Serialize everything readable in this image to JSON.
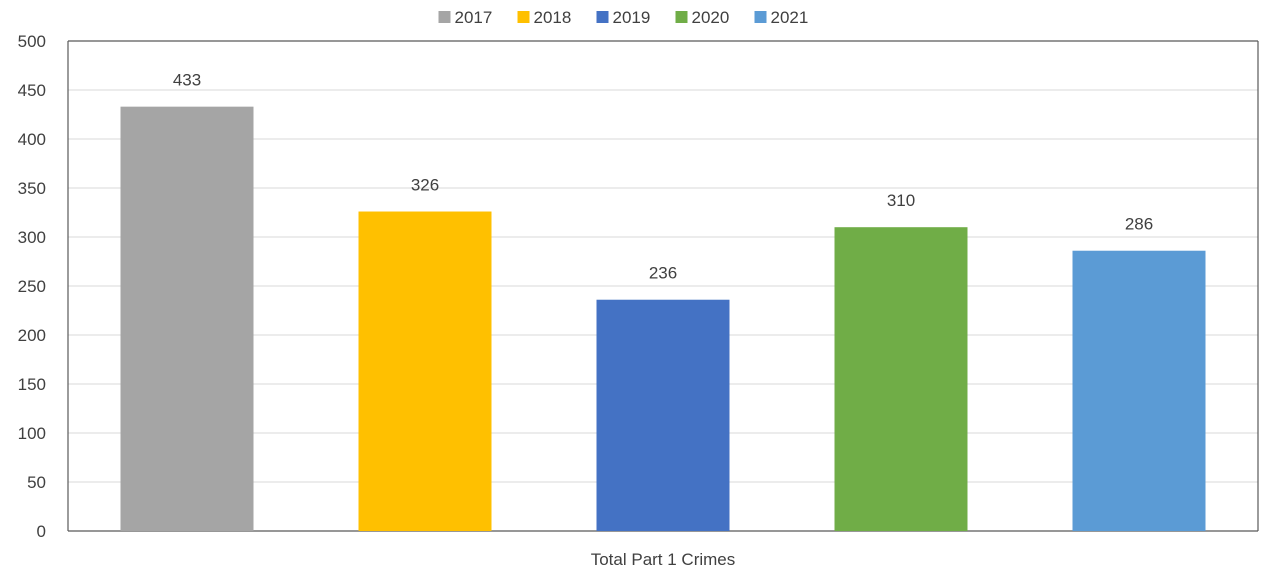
{
  "chart_data": {
    "type": "bar",
    "categories": [
      "Total Part 1 Crimes"
    ],
    "series": [
      {
        "name": "2017",
        "values": [
          433
        ],
        "color": "#A5A5A5"
      },
      {
        "name": "2018",
        "values": [
          326
        ],
        "color": "#FFC000"
      },
      {
        "name": "2019",
        "values": [
          236
        ],
        "color": "#4472C4"
      },
      {
        "name": "2020",
        "values": [
          310
        ],
        "color": "#70AD47"
      },
      {
        "name": "2021",
        "values": [
          286
        ],
        "color": "#5B9BD5"
      }
    ],
    "title": "",
    "xlabel": "",
    "ylabel": "",
    "ylim": [
      0,
      500
    ],
    "yticks": [
      0,
      50,
      100,
      150,
      200,
      250,
      300,
      350,
      400,
      450,
      500
    ],
    "grid": true,
    "legend_position": "top"
  }
}
